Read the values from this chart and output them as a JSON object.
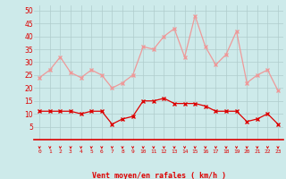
{
  "hours": [
    0,
    1,
    2,
    3,
    4,
    5,
    6,
    7,
    8,
    9,
    10,
    11,
    12,
    13,
    14,
    15,
    16,
    17,
    18,
    19,
    20,
    21,
    22,
    23
  ],
  "wind_avg": [
    11,
    11,
    11,
    11,
    10,
    11,
    11,
    6,
    8,
    9,
    15,
    15,
    16,
    14,
    14,
    14,
    13,
    11,
    11,
    11,
    7,
    8,
    10,
    6
  ],
  "wind_gust": [
    24,
    27,
    32,
    26,
    24,
    27,
    25,
    20,
    22,
    25,
    36,
    35,
    40,
    43,
    32,
    48,
    36,
    29,
    33,
    42,
    22,
    25,
    27,
    19
  ],
  "bg_color": "#cdeaea",
  "grid_color": "#b0cccc",
  "line_avg_color": "#dd0000",
  "line_gust_color": "#ee9999",
  "marker_avg_color": "#dd0000",
  "marker_gust_color": "#ee9999",
  "xlabel": "Vent moyen/en rafales ( km/h )",
  "xlabel_color": "#dd0000",
  "tick_color": "#dd0000",
  "spine_color": "#dd0000",
  "arrow_color": "#dd0000",
  "ylim": [
    0,
    52
  ],
  "yticks": [
    5,
    10,
    15,
    20,
    25,
    30,
    35,
    40,
    45,
    50
  ]
}
